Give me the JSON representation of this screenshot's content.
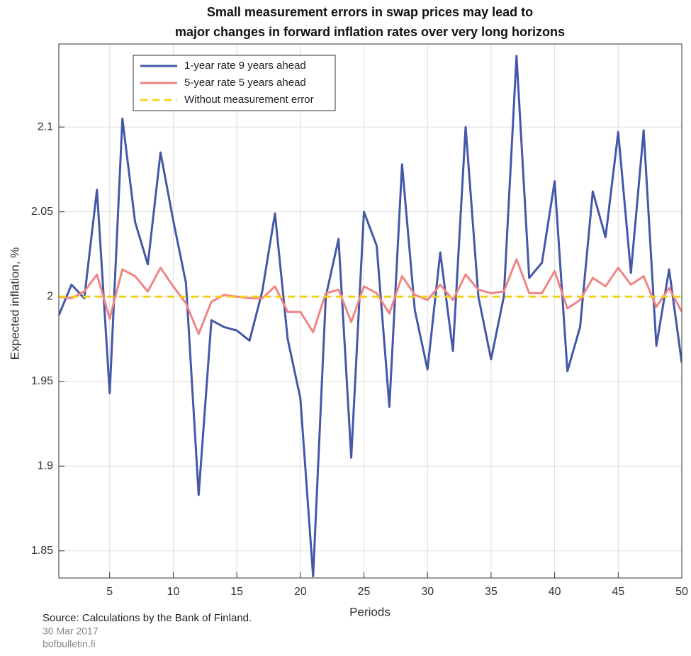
{
  "chart_data": {
    "type": "line",
    "title": [
      "Small measurement errors in swap prices may lead to",
      "major changes in forward inflation rates over very long horizons"
    ],
    "x_label": "Periods",
    "y_label": "Expected inflation, %",
    "x": [
      1,
      2,
      3,
      4,
      5,
      6,
      7,
      8,
      9,
      10,
      11,
      12,
      13,
      14,
      15,
      16,
      17,
      18,
      19,
      20,
      21,
      22,
      23,
      24,
      25,
      26,
      27,
      28,
      29,
      30,
      31,
      32,
      33,
      34,
      35,
      36,
      37,
      38,
      39,
      40,
      41,
      42,
      43,
      44,
      45,
      46,
      47,
      48,
      49,
      50
    ],
    "series": [
      {
        "name": "1-year rate 9 years ahead",
        "color": "#4457a8",
        "dash": false,
        "values": [
          1.989,
          2.007,
          1.999,
          2.063,
          1.943,
          2.105,
          2.044,
          2.019,
          2.085,
          2.045,
          2.008,
          1.883,
          1.986,
          1.982,
          1.98,
          1.974,
          2.003,
          2.049,
          1.975,
          1.94,
          1.835,
          2.0,
          2.034,
          1.905,
          2.05,
          2.03,
          1.935,
          2.078,
          1.992,
          1.957,
          2.026,
          1.968,
          2.1,
          2.0,
          1.963,
          2.0,
          2.142,
          2.011,
          2.02,
          2.068,
          1.956,
          1.982,
          2.062,
          2.035,
          2.097,
          2.014,
          2.098,
          1.971,
          2.016,
          1.961
        ]
      },
      {
        "name": "5-year rate 5 years ahead",
        "color": "#f08585",
        "dash": false,
        "values": [
          2.0,
          1.999,
          2.003,
          2.013,
          1.987,
          2.016,
          2.012,
          2.003,
          2.017,
          2.006,
          1.996,
          1.978,
          1.997,
          2.001,
          2.0,
          1.999,
          1.999,
          2.006,
          1.991,
          1.991,
          1.979,
          2.002,
          2.004,
          1.985,
          2.006,
          2.002,
          1.99,
          2.012,
          2.001,
          1.998,
          2.007,
          1.998,
          2.013,
          2.004,
          2.002,
          2.003,
          2.022,
          2.002,
          2.002,
          2.015,
          1.993,
          1.998,
          2.011,
          2.006,
          2.017,
          2.007,
          2.012,
          1.994,
          2.005,
          1.991
        ]
      },
      {
        "name": "Without measurement error",
        "color": "#f2d21b",
        "dash": true,
        "values": [
          2,
          2,
          2,
          2,
          2,
          2,
          2,
          2,
          2,
          2,
          2,
          2,
          2,
          2,
          2,
          2,
          2,
          2,
          2,
          2,
          2,
          2,
          2,
          2,
          2,
          2,
          2,
          2,
          2,
          2,
          2,
          2,
          2,
          2,
          2,
          2,
          2,
          2,
          2,
          2,
          2,
          2,
          2,
          2,
          2,
          2,
          2,
          2,
          2,
          2
        ]
      }
    ],
    "xlim": [
      1,
      50
    ],
    "xticks": [
      5,
      10,
      15,
      20,
      25,
      30,
      35,
      40,
      45,
      50
    ],
    "ylim": [
      1.834,
      2.149
    ],
    "yticks": [
      1.85,
      1.9,
      1.95,
      2,
      2.05,
      2.1
    ],
    "grid": true,
    "legend": "top-left",
    "footer": [
      "Source: Calculations by the Bank of Finland.",
      "30 Mar 2017",
      "bofbulletin.fi"
    ]
  }
}
